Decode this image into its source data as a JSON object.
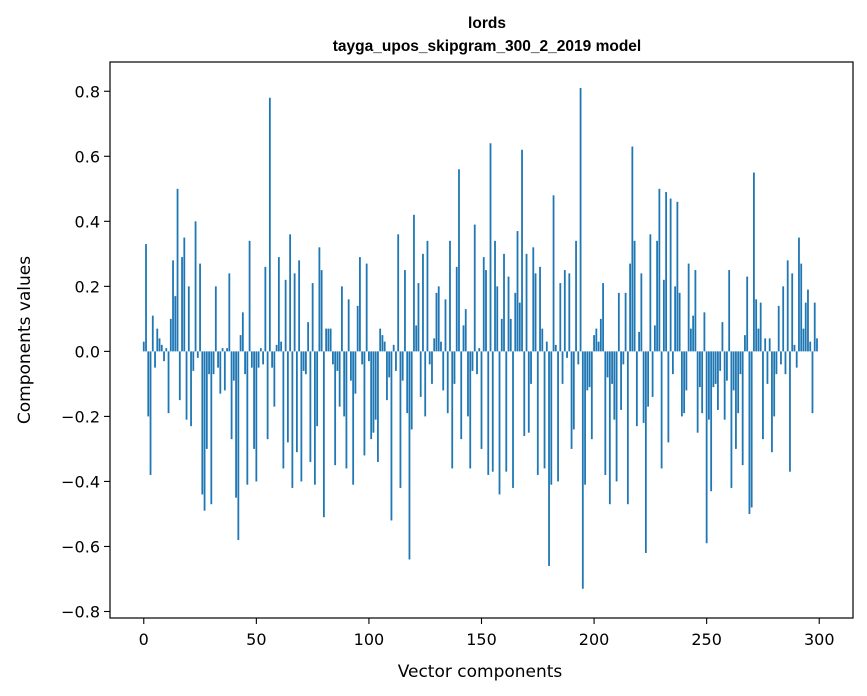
{
  "chart_data": {
    "type": "bar",
    "title_line1": "lords",
    "title_line2": "tayga_upos_skipgram_300_2_2019 model",
    "xlabel": "Vector components",
    "ylabel": "Components values",
    "xlim": [
      -15,
      315
    ],
    "ylim": [
      -0.82,
      0.89
    ],
    "xticks": [
      0,
      50,
      100,
      150,
      200,
      250,
      300
    ],
    "xtick_labels": [
      "0",
      "50",
      "100",
      "150",
      "200",
      "250",
      "300"
    ],
    "yticks": [
      -0.8,
      -0.6,
      -0.4,
      -0.2,
      0.0,
      0.2,
      0.4,
      0.6,
      0.8
    ],
    "ytick_labels": [
      "−0.8",
      "−0.6",
      "−0.4",
      "−0.2",
      "0.0",
      "0.2",
      "0.4",
      "0.6",
      "0.8"
    ],
    "bar_color": "#1f77b4",
    "grid": false,
    "values": [
      0.03,
      0.33,
      -0.2,
      -0.38,
      0.11,
      -0.05,
      0.07,
      0.04,
      0.02,
      -0.03,
      0.01,
      -0.19,
      0.1,
      0.28,
      0.17,
      0.5,
      -0.15,
      0.29,
      0.35,
      -0.21,
      0.2,
      -0.23,
      -0.06,
      0.4,
      -0.02,
      0.27,
      -0.44,
      -0.49,
      -0.3,
      -0.07,
      -0.47,
      -0.07,
      0.2,
      -0.05,
      -0.13,
      0.01,
      -0.12,
      0.01,
      0.24,
      -0.27,
      -0.09,
      -0.45,
      -0.58,
      0.05,
      0.12,
      -0.07,
      -0.41,
      0.34,
      -0.05,
      -0.3,
      -0.4,
      -0.05,
      0.01,
      -0.04,
      0.26,
      -0.27,
      0.78,
      -0.05,
      -0.17,
      0.02,
      0.29,
      0.03,
      -0.36,
      0.22,
      -0.28,
      0.36,
      -0.42,
      0.24,
      -0.31,
      0.28,
      -0.4,
      -0.06,
      -0.07,
      0.09,
      -0.34,
      0.21,
      -0.41,
      -0.23,
      0.32,
      0.25,
      -0.51,
      0.07,
      0.07,
      0.07,
      -0.04,
      -0.35,
      -0.06,
      -0.17,
      0.2,
      -0.2,
      -0.36,
      0.16,
      -0.09,
      -0.41,
      -0.13,
      0.14,
      0.29,
      -0.04,
      -0.32,
      0.27,
      -0.03,
      -0.27,
      -0.25,
      -0.21,
      -0.34,
      0.07,
      0.05,
      0.03,
      -0.15,
      -0.08,
      -0.52,
      0.02,
      -0.06,
      0.36,
      -0.42,
      -0.09,
      0.25,
      -0.19,
      -0.64,
      -0.24,
      0.42,
      0.08,
      0.21,
      -0.14,
      0.3,
      -0.2,
      0.34,
      -0.04,
      -0.1,
      0.04,
      0.18,
      0.2,
      0.03,
      -0.12,
      0.16,
      -0.19,
      0.34,
      -0.36,
      -0.1,
      0.26,
      0.56,
      -0.27,
      0.08,
      0.13,
      -0.2,
      -0.36,
      -0.06,
      0.39,
      -0.07,
      0.01,
      -0.3,
      0.29,
      0.25,
      -0.38,
      0.64,
      -0.37,
      0.34,
      0.2,
      -0.44,
      0.1,
      0.3,
      -0.37,
      0.23,
      0.1,
      -0.42,
      0.18,
      0.37,
      0.15,
      0.62,
      -0.26,
      0.3,
      -0.25,
      -0.1,
      0.32,
      0.24,
      -0.38,
      0.26,
      0.07,
      -0.36,
      0.03,
      -0.66,
      -0.41,
      0.48,
      0.02,
      -0.4,
      0.21,
      -0.1,
      0.25,
      -0.02,
      0.24,
      -0.3,
      -0.24,
      0.34,
      -0.04,
      0.81,
      -0.73,
      -0.41,
      -0.12,
      -0.11,
      -0.27,
      0.05,
      0.07,
      0.03,
      0.1,
      0.21,
      -0.38,
      -0.08,
      -0.47,
      -0.1,
      -0.21,
      -0.4,
      0.18,
      -0.18,
      -0.04,
      0.18,
      -0.47,
      0.27,
      0.63,
      0.34,
      -0.23,
      0.06,
      0.24,
      -0.22,
      -0.62,
      -0.17,
      0.36,
      -0.14,
      0.08,
      0.34,
      0.5,
      -0.36,
      0.22,
      0.49,
      -0.28,
      0.47,
      -0.07,
      0.2,
      0.46,
      0.18,
      -0.2,
      -0.19,
      -0.12,
      0.27,
      0.07,
      0.11,
      0.25,
      -0.25,
      -0.11,
      -0.19,
      0.12,
      -0.59,
      -0.21,
      -0.43,
      -0.11,
      -0.1,
      -0.18,
      -0.06,
      0.09,
      -0.21,
      -0.09,
      0.25,
      -0.42,
      -0.12,
      -0.3,
      -0.19,
      -0.07,
      -0.35,
      0.05,
      0.23,
      -0.5,
      -0.48,
      0.55,
      0.16,
      0.07,
      0.15,
      -0.27,
      0.04,
      -0.1,
      0.04,
      -0.31,
      -0.2,
      -0.07,
      0.14,
      -0.04,
      0.2,
      -0.07,
      0.28,
      -0.37,
      0.24,
      0.02,
      -0.05,
      0.35,
      0.27,
      0.07,
      0.15,
      0.19,
      0.03,
      -0.19,
      0.15,
      0.04
    ]
  }
}
